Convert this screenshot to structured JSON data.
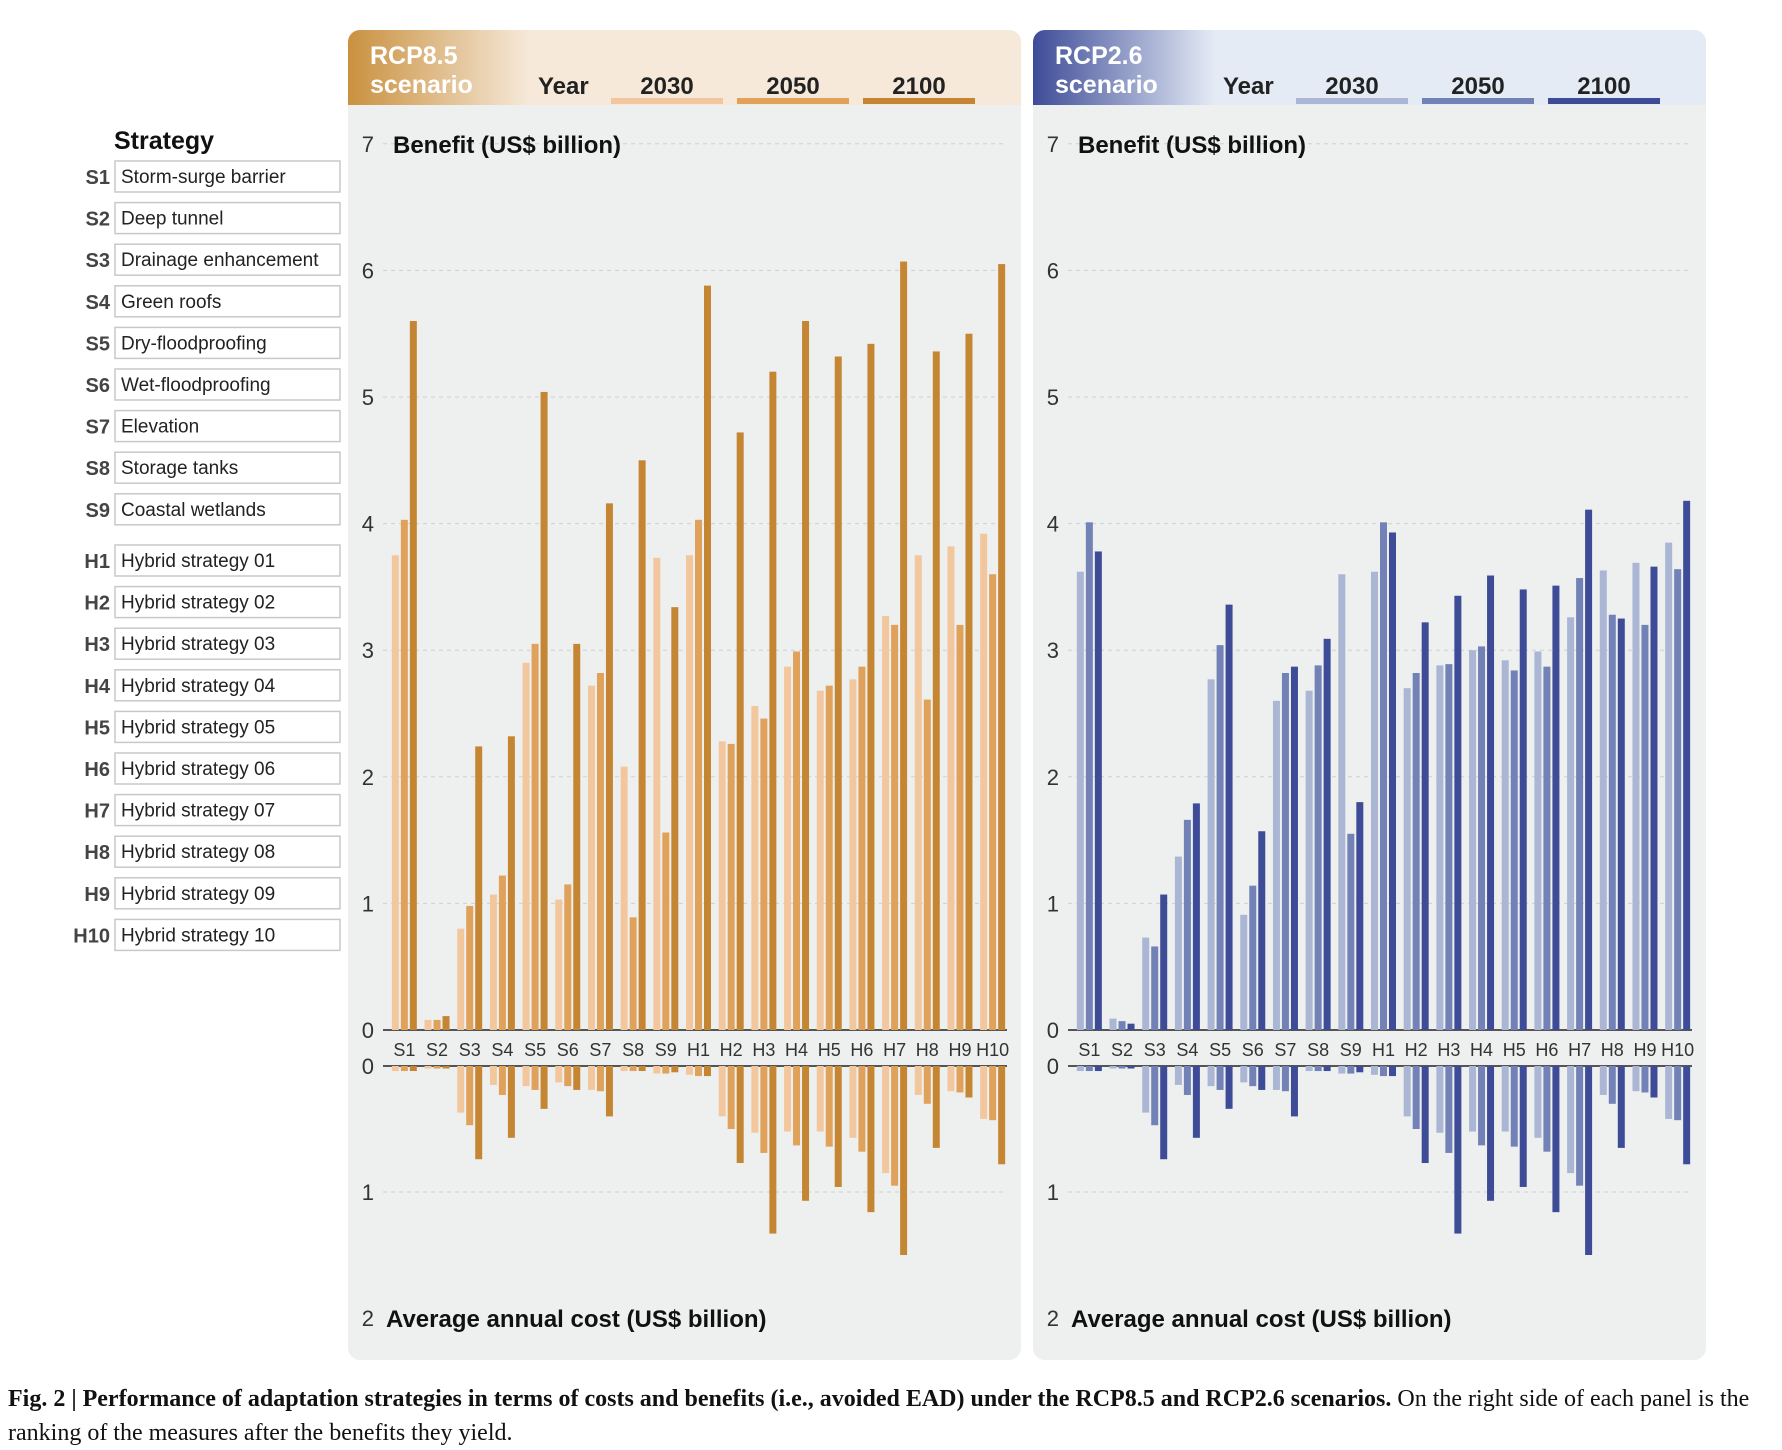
{
  "legend": {
    "heading": "Strategy",
    "items": [
      {
        "code": "S1",
        "name": "Storm-surge barrier"
      },
      {
        "code": "S2",
        "name": "Deep tunnel"
      },
      {
        "code": "S3",
        "name": "Drainage enhancement"
      },
      {
        "code": "S4",
        "name": "Green roofs"
      },
      {
        "code": "S5",
        "name": "Dry-floodproofing"
      },
      {
        "code": "S6",
        "name": "Wet-floodproofing"
      },
      {
        "code": "S7",
        "name": "Elevation"
      },
      {
        "code": "S8",
        "name": "Storage tanks"
      },
      {
        "code": "S9",
        "name": "Coastal wetlands"
      },
      {
        "code": "H1",
        "name": "Hybrid strategy 01"
      },
      {
        "code": "H2",
        "name": "Hybrid strategy 02"
      },
      {
        "code": "H3",
        "name": "Hybrid strategy 03"
      },
      {
        "code": "H4",
        "name": "Hybrid strategy 04"
      },
      {
        "code": "H5",
        "name": "Hybrid strategy 05"
      },
      {
        "code": "H6",
        "name": "Hybrid strategy 06"
      },
      {
        "code": "H7",
        "name": "Hybrid strategy 07"
      },
      {
        "code": "H8",
        "name": "Hybrid strategy 08"
      },
      {
        "code": "H9",
        "name": "Hybrid strategy 09"
      },
      {
        "code": "H10",
        "name": "Hybrid strategy 10"
      }
    ]
  },
  "caption": {
    "bold": "Fig. 2 | Performance of adaptation strategies in terms of costs and benefits (i.e., avoided EAD) under the RCP8.5 and RCP2.6 scenarios.",
    "rest": " On the right side of each panel is the ranking of the measures after the benefits they yield."
  },
  "chart_data": [
    {
      "type": "bar",
      "scenario_label": [
        "RCP8.5",
        "scenario"
      ],
      "year_label": "Year",
      "years": [
        "2030",
        "2050",
        "2100"
      ],
      "colors": [
        "#f3c79e",
        "#e0a15a",
        "#c58634"
      ],
      "header_color": "#c9913f",
      "header_light": "#f6e9da",
      "ylabel_top": "Benefit (US$ billion)",
      "ylabel_bottom": "Average annual cost (US$ billion)",
      "benefit_ylim": [
        0,
        7
      ],
      "benefit_ticks": [
        0,
        1,
        2,
        3,
        4,
        5,
        6,
        7
      ],
      "cost_ylim": [
        0,
        2
      ],
      "cost_ticks": [
        0,
        1,
        2
      ],
      "categories": [
        "S1",
        "S2",
        "S3",
        "S4",
        "S5",
        "S6",
        "S7",
        "S8",
        "S9",
        "H1",
        "H2",
        "H3",
        "H4",
        "H5",
        "H6",
        "H7",
        "H8",
        "H9",
        "H10"
      ],
      "benefit": [
        {
          "name": "2030",
          "values": [
            3.75,
            0.08,
            0.8,
            1.07,
            2.9,
            1.03,
            2.72,
            2.08,
            3.73,
            3.75,
            2.28,
            2.56,
            2.87,
            2.68,
            2.77,
            3.27,
            3.75,
            3.82,
            3.92
          ]
        },
        {
          "name": "2050",
          "values": [
            4.03,
            0.08,
            0.98,
            1.22,
            3.05,
            1.15,
            2.82,
            0.89,
            1.56,
            4.03,
            2.26,
            2.46,
            2.99,
            2.72,
            2.87,
            3.2,
            2.61,
            3.2,
            3.6
          ]
        },
        {
          "name": "2100",
          "values": [
            5.6,
            0.11,
            2.24,
            2.32,
            5.04,
            3.05,
            4.16,
            4.5,
            3.34,
            5.88,
            4.72,
            5.2,
            5.6,
            5.32,
            5.42,
            6.07,
            5.36,
            5.5,
            6.05
          ]
        }
      ],
      "cost": [
        {
          "name": "2030",
          "values": [
            0.04,
            0.02,
            0.37,
            0.15,
            0.16,
            0.13,
            0.19,
            0.04,
            0.06,
            0.07,
            0.4,
            0.53,
            0.52,
            0.52,
            0.57,
            0.85,
            0.23,
            0.2,
            0.42
          ]
        },
        {
          "name": "2050",
          "values": [
            0.04,
            0.02,
            0.47,
            0.23,
            0.19,
            0.16,
            0.2,
            0.04,
            0.06,
            0.08,
            0.5,
            0.69,
            0.63,
            0.64,
            0.68,
            0.95,
            0.3,
            0.21,
            0.43
          ]
        },
        {
          "name": "2100",
          "values": [
            0.04,
            0.02,
            0.74,
            0.57,
            0.34,
            0.19,
            0.4,
            0.04,
            0.05,
            0.08,
            0.77,
            1.33,
            1.07,
            0.96,
            1.16,
            1.5,
            0.65,
            0.25,
            0.78
          ]
        }
      ]
    },
    {
      "type": "bar",
      "scenario_label": [
        "RCP2.6",
        "scenario"
      ],
      "year_label": "Year",
      "years": [
        "2030",
        "2050",
        "2100"
      ],
      "colors": [
        "#aab6d3",
        "#7282b6",
        "#3e4c98"
      ],
      "header_color": "#3e4c98",
      "header_light": "#e4ebf5",
      "ylabel_top": "Benefit (US$ billion)",
      "ylabel_bottom": "Average annual cost (US$ billion)",
      "benefit_ylim": [
        0,
        7
      ],
      "benefit_ticks": [
        0,
        1,
        2,
        3,
        4,
        5,
        6,
        7
      ],
      "cost_ylim": [
        0,
        2
      ],
      "cost_ticks": [
        0,
        1,
        2
      ],
      "categories": [
        "S1",
        "S2",
        "S3",
        "S4",
        "S5",
        "S6",
        "S7",
        "S8",
        "S9",
        "H1",
        "H2",
        "H3",
        "H4",
        "H5",
        "H6",
        "H7",
        "H8",
        "H9",
        "H10"
      ],
      "benefit": [
        {
          "name": "2030",
          "values": [
            3.62,
            0.09,
            0.73,
            1.37,
            2.77,
            0.91,
            2.6,
            2.68,
            3.6,
            3.62,
            2.7,
            2.88,
            3.0,
            2.92,
            2.99,
            3.26,
            3.63,
            3.69,
            3.85
          ]
        },
        {
          "name": "2050",
          "values": [
            4.01,
            0.07,
            0.66,
            1.66,
            3.04,
            1.14,
            2.82,
            2.88,
            1.55,
            4.01,
            2.82,
            2.89,
            3.03,
            2.84,
            2.87,
            3.57,
            3.28,
            3.2,
            3.64
          ]
        },
        {
          "name": "2100",
          "values": [
            3.78,
            0.05,
            1.07,
            1.79,
            3.36,
            1.57,
            2.87,
            3.09,
            1.8,
            3.93,
            3.22,
            3.43,
            3.59,
            3.48,
            3.51,
            4.11,
            3.25,
            3.66,
            4.18
          ]
        }
      ],
      "cost": [
        {
          "name": "2030",
          "values": [
            0.04,
            0.02,
            0.37,
            0.15,
            0.16,
            0.13,
            0.19,
            0.04,
            0.06,
            0.07,
            0.4,
            0.53,
            0.52,
            0.52,
            0.57,
            0.85,
            0.23,
            0.2,
            0.42
          ]
        },
        {
          "name": "2050",
          "values": [
            0.04,
            0.02,
            0.47,
            0.23,
            0.19,
            0.16,
            0.2,
            0.04,
            0.06,
            0.08,
            0.5,
            0.69,
            0.63,
            0.64,
            0.68,
            0.95,
            0.3,
            0.21,
            0.43
          ]
        },
        {
          "name": "2100",
          "values": [
            0.04,
            0.02,
            0.74,
            0.57,
            0.34,
            0.19,
            0.4,
            0.04,
            0.05,
            0.08,
            0.77,
            1.33,
            1.07,
            0.96,
            1.16,
            1.5,
            0.65,
            0.25,
            0.78
          ]
        }
      ]
    }
  ]
}
